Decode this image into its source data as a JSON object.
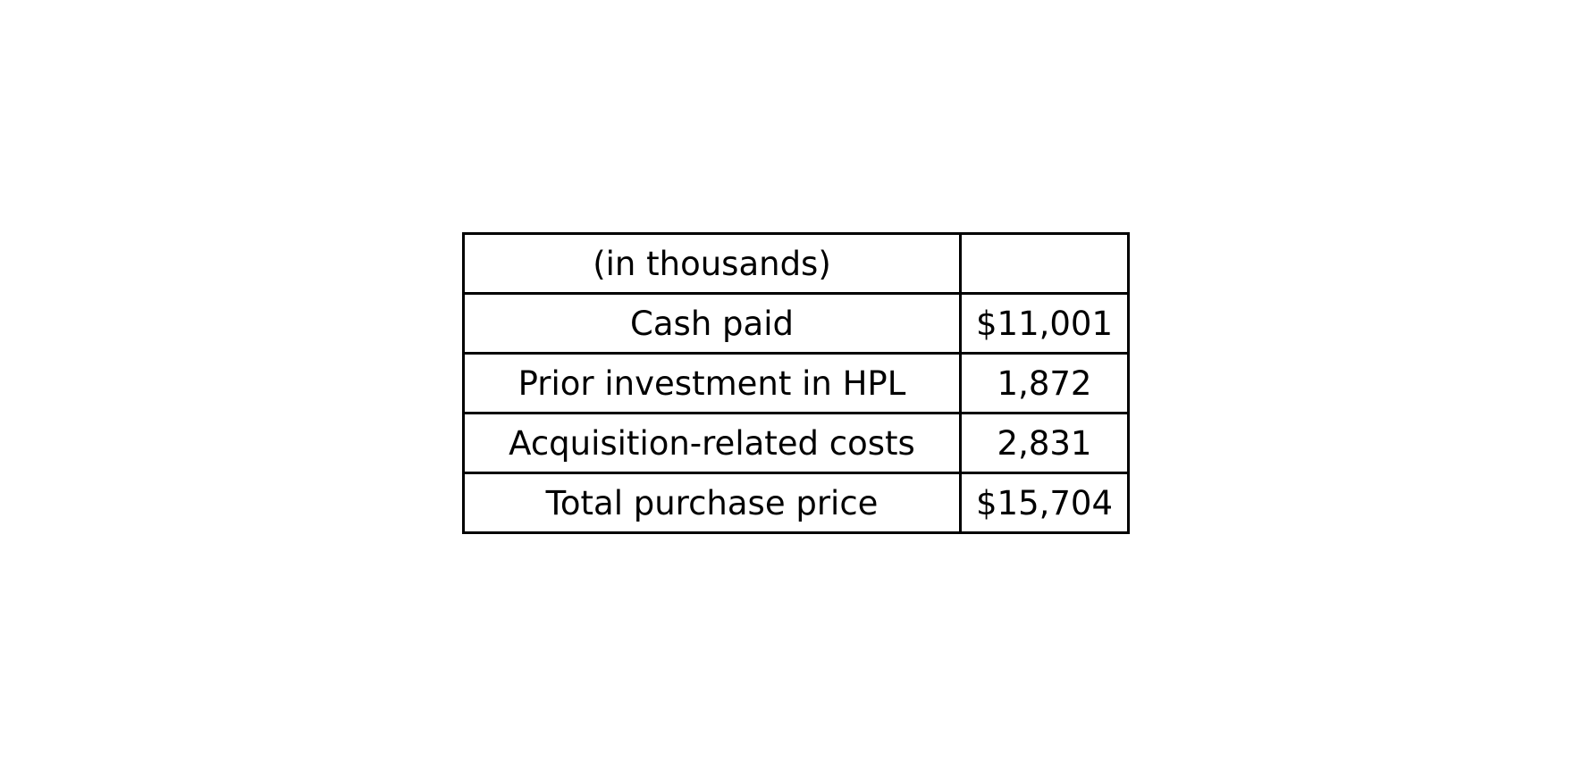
{
  "table": {
    "header": {
      "label": "(in thousands)",
      "value": ""
    },
    "rows": [
      {
        "label": "Cash paid",
        "value": "$11,001"
      },
      {
        "label": "Prior investment in HPL",
        "value": "1,872"
      },
      {
        "label": "Acquisition-related costs",
        "value": "2,831"
      },
      {
        "label": "Total purchase price",
        "value": "$15,704"
      }
    ]
  }
}
